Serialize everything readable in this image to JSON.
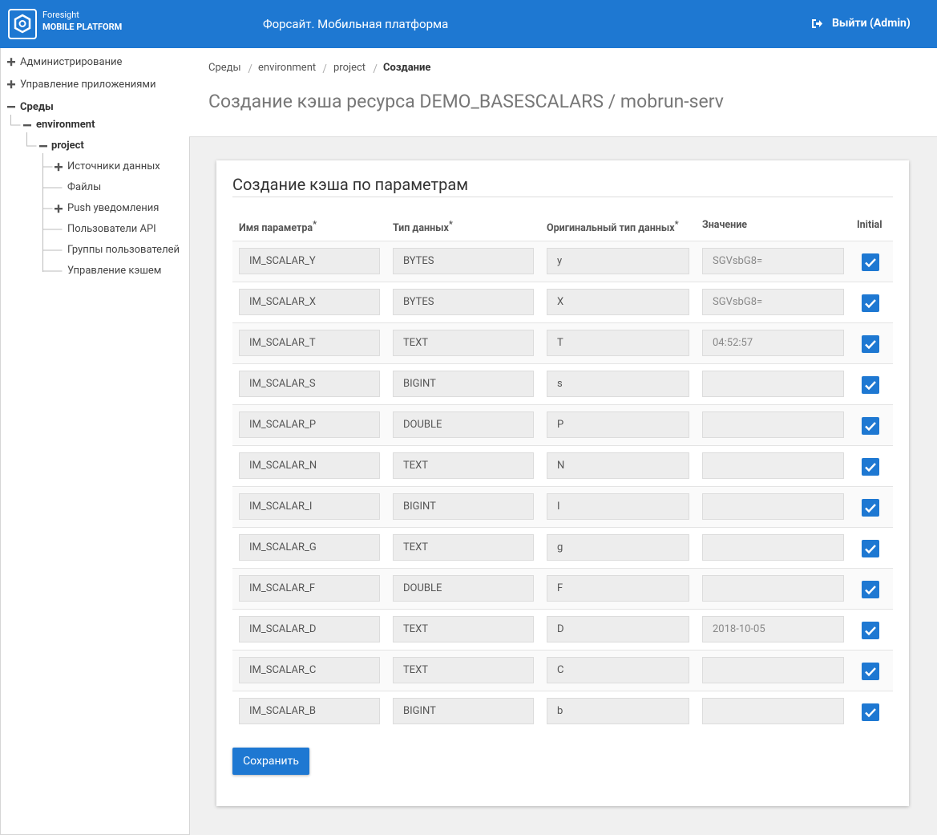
{
  "header": {
    "logo_top": "Foresight",
    "logo_bottom": "MOBILE PLATFORM",
    "title": "Форсайт. Мобильная платформа",
    "logout": "Выйти (Admin)"
  },
  "sidebar": [
    "Администрирование",
    "Управление приложениями",
    "Среды",
    "environment",
    "project",
    "Источники данных",
    "Файлы",
    "Push уведомления",
    "Пользователи API",
    "Группы пользователей",
    "Управление кэшем"
  ],
  "breadcrumb": [
    "Среды",
    "environment",
    "project",
    "Создание"
  ],
  "page_title": "Создание кэша ресурса DEMO_BASESCALARS / mobrun-serv",
  "card": {
    "title": "Создание кэша по параметрам",
    "columns": [
      {
        "label": "Имя параметра",
        "mark": "*"
      },
      {
        "label": "Тип данных",
        "mark": "*"
      },
      {
        "label": "Оригинальный тип данных",
        "mark": "*"
      },
      {
        "label": "Значение"
      },
      {
        "label": "Initial"
      }
    ],
    "rows": [
      [
        "IM_SCALAR_Y",
        "BYTES",
        "y",
        "SGVsbG8=",
        true
      ],
      [
        "IM_SCALAR_X",
        "BYTES",
        "X",
        "SGVsbG8=",
        true
      ],
      [
        "IM_SCALAR_T",
        "TEXT",
        "T",
        "04:52:57",
        true
      ],
      [
        "IM_SCALAR_S",
        "BIGINT",
        "s",
        null,
        true
      ],
      [
        "IM_SCALAR_P",
        "DOUBLE",
        "P",
        null,
        true
      ],
      [
        "IM_SCALAR_N",
        "TEXT",
        "N",
        null,
        true
      ],
      [
        "IM_SCALAR_I",
        "BIGINT",
        "I",
        null,
        true
      ],
      [
        "IM_SCALAR_G",
        "TEXT",
        "g",
        null,
        true
      ],
      [
        "IM_SCALAR_F",
        "DOUBLE",
        "F",
        null,
        true
      ],
      [
        "IM_SCALAR_D",
        "TEXT",
        "D",
        "2018-10-05",
        true
      ],
      [
        "IM_SCALAR_C",
        "TEXT",
        "C",
        null,
        true
      ],
      [
        "IM_SCALAR_B",
        "BIGINT",
        "b",
        null,
        true
      ]
    ],
    "save": "Сохранить"
  }
}
